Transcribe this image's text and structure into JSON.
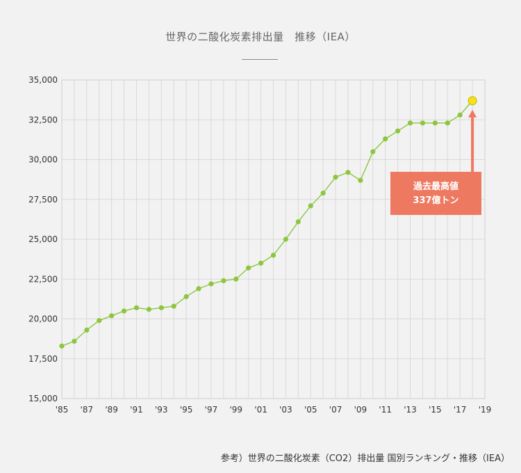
{
  "chart_title": "世界の二酸化炭素排出量　推移（IEA）",
  "caption": "参考）世界の二酸化炭素（CO2）排出量 国別ランキング・推移（IEA）",
  "chart_data": {
    "type": "line",
    "title": "世界の二酸化炭素排出量　推移（IEA）",
    "xlabel": "",
    "ylabel": "",
    "ylim": [
      15000,
      35000
    ],
    "xlim": [
      1985,
      2019
    ],
    "grid": true,
    "y_ticks": [
      "15,000",
      "17,500",
      "20,000",
      "22,500",
      "25,000",
      "27,500",
      "30,000",
      "32,500",
      "35,000"
    ],
    "y_tick_values": [
      15000,
      17500,
      20000,
      22500,
      25000,
      27500,
      30000,
      32500,
      35000
    ],
    "x_ticks": [
      "'85",
      "'87",
      "'89",
      "'91",
      "'93",
      "'95",
      "'97",
      "'99",
      "'01",
      "'03",
      "'05",
      "'07",
      "'09",
      "'11",
      "'13",
      "'15",
      "'17",
      "'19"
    ],
    "x_tick_values": [
      1985,
      1987,
      1989,
      1991,
      1993,
      1995,
      1997,
      1999,
      2001,
      2003,
      2005,
      2007,
      2009,
      2011,
      2013,
      2015,
      2017,
      2019
    ],
    "x": [
      1985,
      1986,
      1987,
      1988,
      1989,
      1990,
      1991,
      1992,
      1993,
      1994,
      1995,
      1996,
      1997,
      1998,
      1999,
      2000,
      2001,
      2002,
      2003,
      2004,
      2005,
      2006,
      2007,
      2008,
      2009,
      2010,
      2011,
      2012,
      2013,
      2014,
      2015,
      2016,
      2017,
      2018
    ],
    "values": [
      18300,
      18600,
      19300,
      19900,
      20200,
      20500,
      20700,
      20600,
      20700,
      20800,
      21400,
      21900,
      22200,
      22400,
      22500,
      23200,
      23500,
      24000,
      25000,
      26100,
      27100,
      27900,
      28900,
      29200,
      28700,
      30500,
      31300,
      31800,
      32300,
      32300,
      32300,
      32300,
      32800,
      33700
    ],
    "line_color": "#8cc63f",
    "highlight_color": "#f5e11a",
    "annotation": {
      "x": 2018,
      "value": 33700,
      "lines": [
        "過去最高値",
        "337億トン"
      ],
      "color": "#ee7961"
    }
  }
}
